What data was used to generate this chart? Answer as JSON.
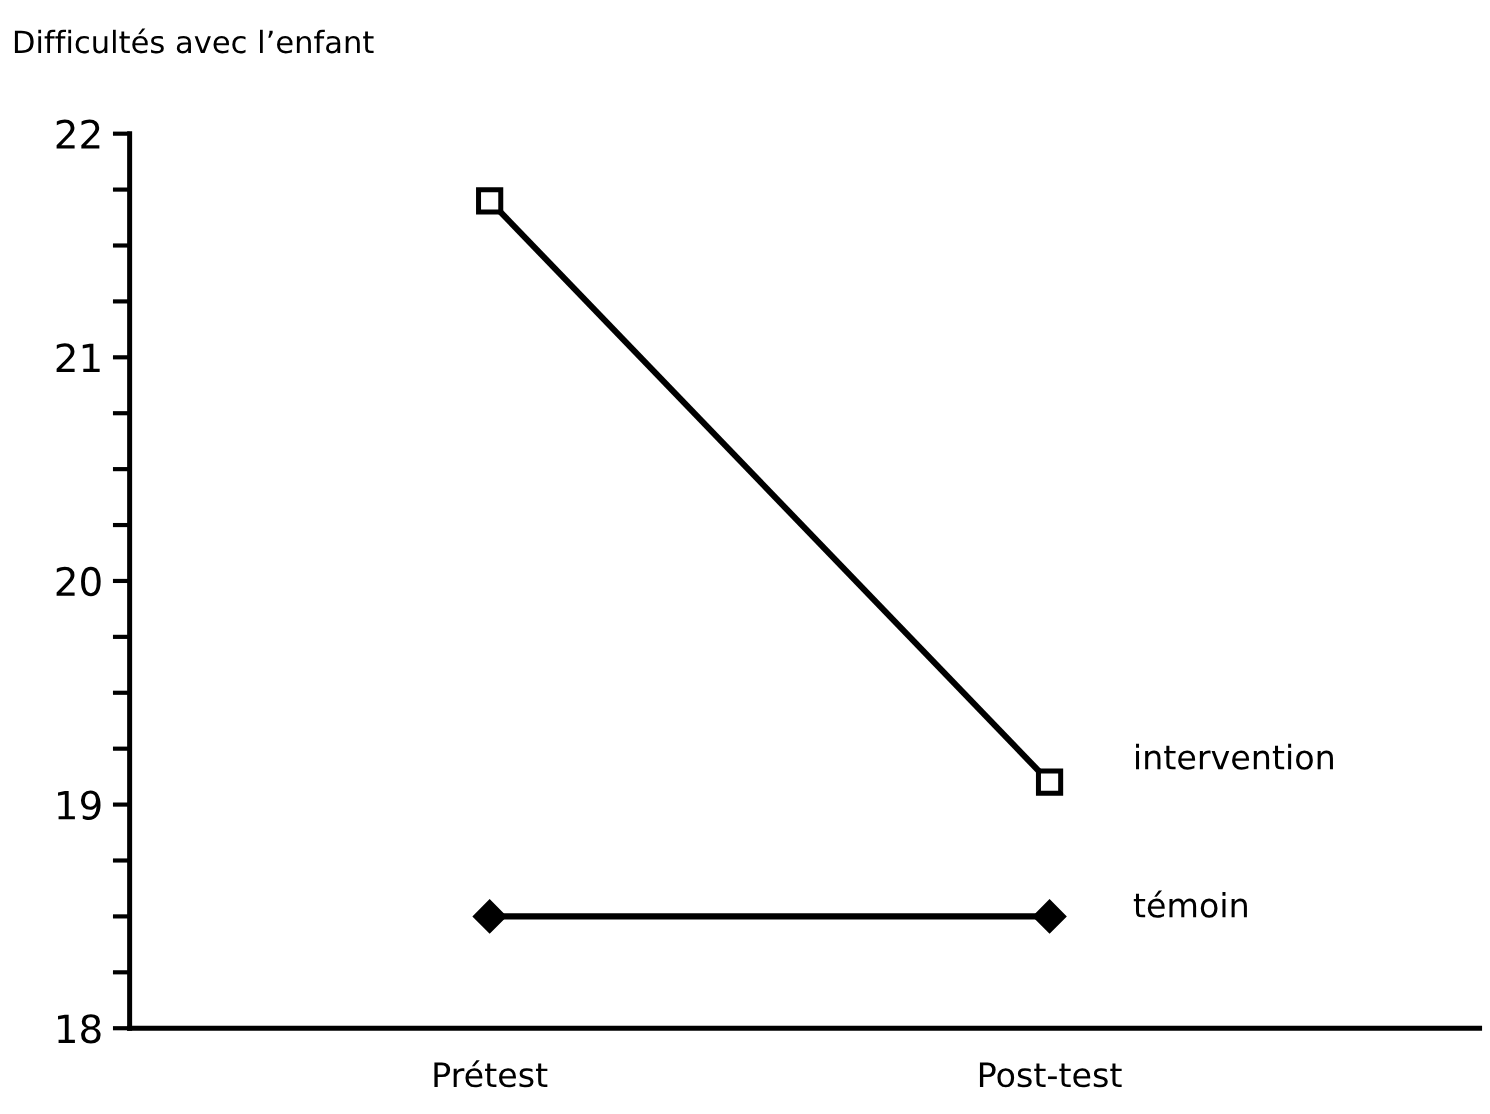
{
  "chart_data": {
    "type": "line",
    "title": "Difficultés avec l’enfant",
    "categories": [
      "Prétest",
      "Post-test"
    ],
    "series": [
      {
        "name": "intervention",
        "color": "#000000",
        "marker": "square",
        "values": [
          21.7,
          19.1
        ]
      },
      {
        "name": "témoin",
        "color": "#000000",
        "marker": "diamond",
        "values": [
          18.5,
          18.5
        ]
      }
    ],
    "ylim": [
      18,
      22
    ],
    "yticks": [
      18,
      {
        "value": 18.25,
        "label": null
      },
      {
        "value": 18.5,
        "label": null
      },
      {
        "value": 18.75,
        "label": null
      },
      19,
      {
        "value": 19.25,
        "label": null
      },
      {
        "value": 19.5,
        "label": null
      },
      {
        "value": 19.75,
        "label": null
      },
      20,
      {
        "value": 20.25,
        "label": null
      },
      {
        "value": 20.5,
        "label": null
      },
      {
        "value": 20.75,
        "label": null
      },
      21,
      {
        "value": 21.25,
        "label": null
      },
      {
        "value": 21.5,
        "label": null
      },
      {
        "value": 21.75,
        "label": null
      },
      22
    ],
    "grid": false,
    "legend": false,
    "line_style": "solid"
  }
}
